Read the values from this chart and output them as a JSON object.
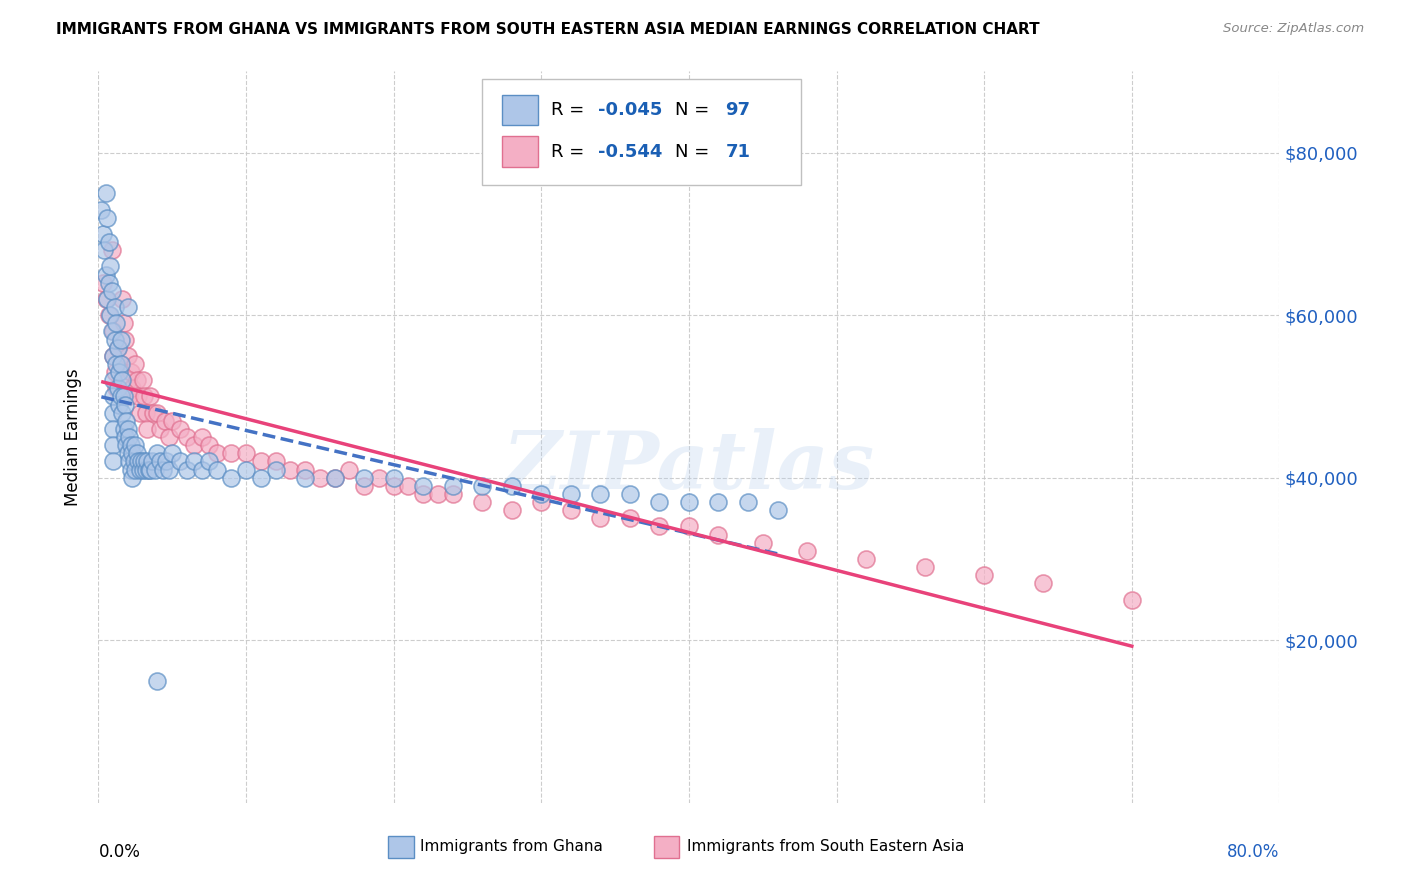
{
  "title": "IMMIGRANTS FROM GHANA VS IMMIGRANTS FROM SOUTH EASTERN ASIA MEDIAN EARNINGS CORRELATION CHART",
  "source": "Source: ZipAtlas.com",
  "ylabel": "Median Earnings",
  "y_ticks": [
    20000,
    40000,
    60000,
    80000
  ],
  "y_tick_labels": [
    "$20,000",
    "$40,000",
    "$60,000",
    "$80,000"
  ],
  "xlim": [
    0.0,
    0.8
  ],
  "ylim": [
    0,
    90000
  ],
  "legend_r1": "-0.045",
  "legend_n1": "97",
  "legend_r2": "-0.544",
  "legend_n2": "71",
  "color_ghana_fill": "#aec6e8",
  "color_ghana_edge": "#5b8ec4",
  "color_sea_fill": "#f4afc5",
  "color_sea_edge": "#e07090",
  "color_line_ghana": "#4472c4",
  "color_line_sea": "#e8427a",
  "watermark": "ZIPatlas",
  "ghana_x": [
    0.002,
    0.003,
    0.004,
    0.005,
    0.005,
    0.006,
    0.006,
    0.007,
    0.007,
    0.008,
    0.008,
    0.009,
    0.009,
    0.01,
    0.01,
    0.01,
    0.01,
    0.01,
    0.01,
    0.01,
    0.011,
    0.011,
    0.012,
    0.012,
    0.013,
    0.013,
    0.014,
    0.014,
    0.015,
    0.015,
    0.015,
    0.016,
    0.016,
    0.017,
    0.017,
    0.018,
    0.018,
    0.019,
    0.019,
    0.02,
    0.02,
    0.021,
    0.021,
    0.022,
    0.022,
    0.023,
    0.023,
    0.024,
    0.025,
    0.025,
    0.026,
    0.027,
    0.028,
    0.029,
    0.03,
    0.031,
    0.032,
    0.033,
    0.034,
    0.035,
    0.036,
    0.038,
    0.04,
    0.042,
    0.044,
    0.046,
    0.048,
    0.05,
    0.055,
    0.06,
    0.065,
    0.07,
    0.075,
    0.08,
    0.09,
    0.1,
    0.11,
    0.12,
    0.14,
    0.16,
    0.18,
    0.2,
    0.22,
    0.24,
    0.26,
    0.28,
    0.3,
    0.32,
    0.34,
    0.36,
    0.38,
    0.4,
    0.42,
    0.44,
    0.46,
    0.02,
    0.04
  ],
  "ghana_y": [
    73000,
    70000,
    68000,
    75000,
    65000,
    62000,
    72000,
    69000,
    64000,
    66000,
    60000,
    63000,
    58000,
    55000,
    52000,
    50000,
    48000,
    46000,
    44000,
    42000,
    61000,
    57000,
    59000,
    54000,
    56000,
    51000,
    53000,
    49000,
    57000,
    54000,
    50000,
    52000,
    48000,
    50000,
    46000,
    49000,
    45000,
    47000,
    44000,
    46000,
    43000,
    45000,
    42000,
    44000,
    41000,
    43000,
    40000,
    42000,
    44000,
    41000,
    43000,
    42000,
    41000,
    42000,
    41000,
    42000,
    41000,
    42000,
    41000,
    41000,
    42000,
    41000,
    43000,
    42000,
    41000,
    42000,
    41000,
    43000,
    42000,
    41000,
    42000,
    41000,
    42000,
    41000,
    40000,
    41000,
    40000,
    41000,
    40000,
    40000,
    40000,
    40000,
    39000,
    39000,
    39000,
    39000,
    38000,
    38000,
    38000,
    38000,
    37000,
    37000,
    37000,
    37000,
    36000,
    61000,
    15000
  ],
  "sea_x": [
    0.003,
    0.005,
    0.007,
    0.009,
    0.01,
    0.01,
    0.011,
    0.012,
    0.013,
    0.015,
    0.016,
    0.017,
    0.018,
    0.02,
    0.02,
    0.021,
    0.022,
    0.023,
    0.025,
    0.026,
    0.027,
    0.028,
    0.03,
    0.031,
    0.032,
    0.033,
    0.035,
    0.037,
    0.04,
    0.042,
    0.045,
    0.048,
    0.05,
    0.055,
    0.06,
    0.065,
    0.07,
    0.075,
    0.08,
    0.09,
    0.1,
    0.11,
    0.12,
    0.13,
    0.14,
    0.15,
    0.16,
    0.17,
    0.18,
    0.19,
    0.2,
    0.21,
    0.22,
    0.23,
    0.24,
    0.26,
    0.28,
    0.3,
    0.32,
    0.34,
    0.36,
    0.38,
    0.4,
    0.42,
    0.45,
    0.48,
    0.52,
    0.56,
    0.6,
    0.64,
    0.7
  ],
  "sea_y": [
    64000,
    62000,
    60000,
    68000,
    58000,
    55000,
    53000,
    51000,
    56000,
    54000,
    62000,
    59000,
    57000,
    55000,
    52000,
    50000,
    53000,
    51000,
    54000,
    52000,
    50000,
    48000,
    52000,
    50000,
    48000,
    46000,
    50000,
    48000,
    48000,
    46000,
    47000,
    45000,
    47000,
    46000,
    45000,
    44000,
    45000,
    44000,
    43000,
    43000,
    43000,
    42000,
    42000,
    41000,
    41000,
    40000,
    40000,
    41000,
    39000,
    40000,
    39000,
    39000,
    38000,
    38000,
    38000,
    37000,
    36000,
    37000,
    36000,
    35000,
    35000,
    34000,
    34000,
    33000,
    32000,
    31000,
    30000,
    29000,
    28000,
    27000,
    25000
  ]
}
